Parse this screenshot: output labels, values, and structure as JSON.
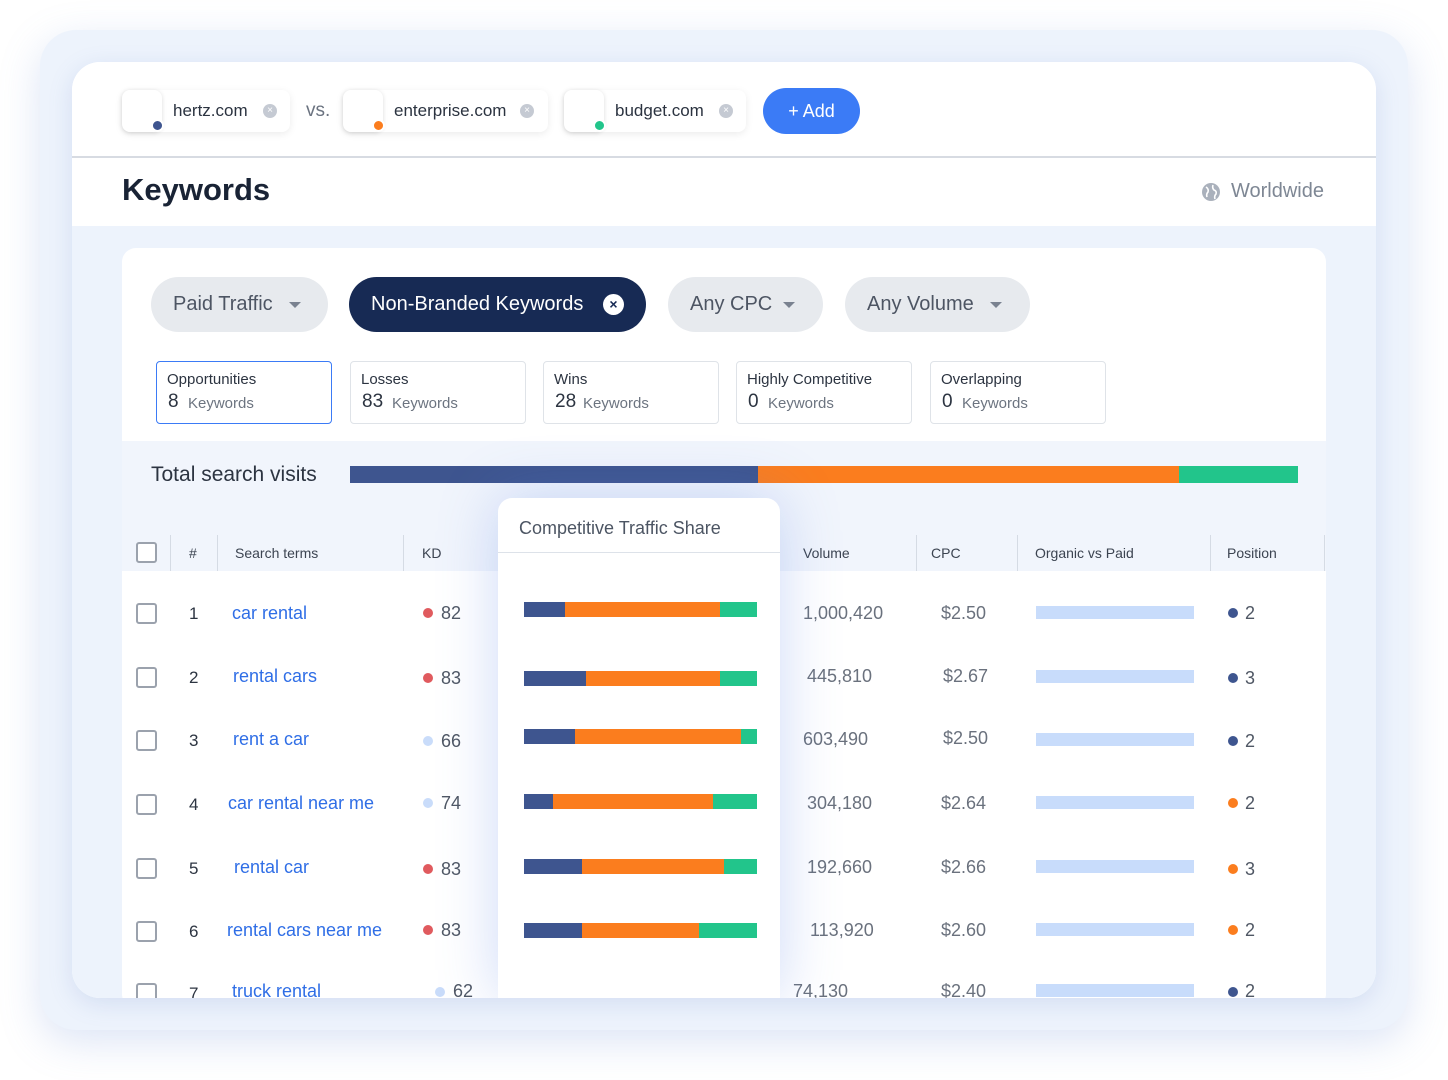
{
  "compare": {
    "vs_label": "vs.",
    "add_label": "+ Add",
    "remove_glyph": "×",
    "domains": [
      {
        "name": "hertz.com",
        "color": "#3e558f"
      },
      {
        "name": "enterprise.com",
        "color": "#fb7d1e"
      },
      {
        "name": "budget.com",
        "color": "#22c58b"
      }
    ]
  },
  "header": {
    "title": "Keywords",
    "region": "Worldwide"
  },
  "filters": {
    "paid_traffic": "Paid Traffic",
    "non_branded": "Non-Branded Keywords",
    "any_cpc": "Any CPC",
    "any_volume": "Any Volume",
    "close_glyph": "×"
  },
  "stats": [
    {
      "title": "Opportunities",
      "count": "8",
      "unit": "Keywords"
    },
    {
      "title": "Losses",
      "count": "83",
      "unit": "Keywords"
    },
    {
      "title": "Wins",
      "count": "28",
      "unit": "Keywords"
    },
    {
      "title": "Highly Competitive",
      "count": "0",
      "unit": "Keywords"
    },
    {
      "title": "Overlapping",
      "count": "0",
      "unit": "Keywords"
    }
  ],
  "total_visits": {
    "label": "Total search visits",
    "shares": [
      0.43,
      0.445,
      0.125
    ]
  },
  "table": {
    "headers": {
      "num": "#",
      "terms": "Search terms",
      "kd": "KD",
      "volume": "Volume",
      "cpc": "CPC",
      "ovp": "Organic vs Paid",
      "position": "Position"
    },
    "rows": [
      {
        "num": "1",
        "term": "car rental",
        "kd": "82",
        "kd_color": "#e05a5e",
        "volume": "1,000,420",
        "cpc": "$2.50",
        "position": "2",
        "pos_color": "#3e558f",
        "share": [
          0.175,
          0.665,
          0.16
        ]
      },
      {
        "num": "2",
        "term": "rental cars",
        "kd": "83",
        "kd_color": "#e05a5e",
        "volume": "445,810",
        "cpc": "$2.67",
        "position": "3",
        "pos_color": "#3e558f",
        "share": [
          0.265,
          0.575,
          0.16
        ]
      },
      {
        "num": "3",
        "term": "rent a car",
        "kd": "66",
        "kd_color": "#c9dcfa",
        "volume": "603,490",
        "cpc": "$2.50",
        "position": "2",
        "pos_color": "#3e558f",
        "share": [
          0.22,
          0.71,
          0.07
        ]
      },
      {
        "num": "4",
        "term": "car rental near me",
        "kd": "74",
        "kd_color": "#c9dcfa",
        "volume": "304,180",
        "cpc": "$2.64",
        "position": "2",
        "pos_color": "#fb7d1e",
        "share": [
          0.125,
          0.685,
          0.19
        ]
      },
      {
        "num": "5",
        "term": "rental car",
        "kd": "83",
        "kd_color": "#e05a5e",
        "volume": "192,660",
        "cpc": "$2.66",
        "position": "3",
        "pos_color": "#fb7d1e",
        "share": [
          0.25,
          0.61,
          0.14
        ]
      },
      {
        "num": "6",
        "term": "rental cars near me",
        "kd": "83",
        "kd_color": "#e05a5e",
        "volume": "113,920",
        "cpc": "$2.60",
        "position": "2",
        "pos_color": "#fb7d1e",
        "share": [
          0.25,
          0.5,
          0.25
        ]
      },
      {
        "num": "7",
        "term": "truck rental",
        "kd": "62",
        "kd_color": "#c9dcfa",
        "volume": "74,130",
        "cpc": "$2.40",
        "position": "2",
        "pos_color": "#3e558f",
        "share": null
      }
    ]
  },
  "popup": {
    "title": "Competitive Traffic Share"
  },
  "colors": {
    "hertz": "#3e558f",
    "enterprise": "#fb7d1e",
    "budget": "#22c58b",
    "accent": "#3b7bf6",
    "navy": "#172a54"
  }
}
